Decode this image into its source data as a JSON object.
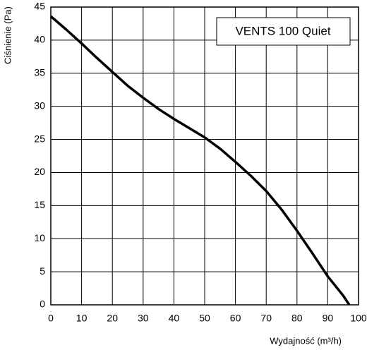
{
  "chart_data": {
    "type": "line",
    "xlabel": "Wydajność (m³/h)",
    "ylabel": "Ciśnienie (Pa)",
    "x": [
      0,
      5,
      10,
      15,
      20,
      25,
      30,
      35,
      40,
      45,
      50,
      55,
      60,
      65,
      70,
      75,
      80,
      85,
      90,
      95,
      97
    ],
    "series": [
      {
        "name": "VENTS 100 Quiet",
        "color": "#000000",
        "values": [
          43.6,
          41.6,
          39.5,
          37.3,
          35.2,
          33.1,
          31.3,
          29.6,
          28.1,
          26.7,
          25.3,
          23.6,
          21.6,
          19.5,
          17.2,
          14.4,
          11.2,
          7.8,
          4.3,
          1.4,
          0
        ]
      }
    ],
    "xlim": [
      0,
      100
    ],
    "xticks": [
      0,
      10,
      20,
      30,
      40,
      50,
      60,
      70,
      80,
      90,
      100
    ],
    "ylim": [
      0,
      45
    ],
    "yticks": [
      0,
      5,
      10,
      15,
      20,
      25,
      30,
      35,
      40,
      45
    ],
    "grid": true,
    "legend": "upper right"
  }
}
